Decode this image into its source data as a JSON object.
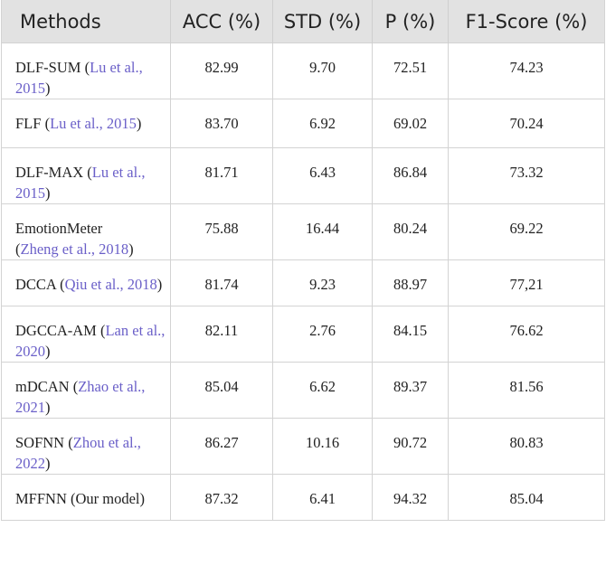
{
  "table": {
    "headers": [
      "Methods",
      "ACC (%)",
      "STD (%)",
      "P (%)",
      "F1-Score (%)"
    ],
    "rows": [
      {
        "method": "DLF-SUM",
        "ref": "Lu et al., 2015",
        "acc": "82.99",
        "std": "9.70",
        "p": "72.51",
        "f1": "74.23"
      },
      {
        "method": "FLF",
        "ref": "Lu et al., 2015",
        "acc": "83.70",
        "std": "6.92",
        "p": "69.02",
        "f1": "70.24"
      },
      {
        "method": "DLF-MAX",
        "ref": "Lu et al., 2015",
        "acc": "81.71",
        "std": "6.43",
        "p": "86.84",
        "f1": "73.32"
      },
      {
        "method": "EmotionMeter",
        "ref": "Zheng et al., 2018",
        "acc": "75.88",
        "std": "16.44",
        "p": "80.24",
        "f1": "69.22"
      },
      {
        "method": "DCCA",
        "ref": "Qiu et al., 2018",
        "acc": "81.74",
        "std": "9.23",
        "p": "88.97",
        "f1": "77,21"
      },
      {
        "method": "DGCCA-AM",
        "ref": "Lan et al., 2020",
        "acc": "82.11",
        "std": "2.76",
        "p": "84.15",
        "f1": "76.62"
      },
      {
        "method": "mDCAN",
        "ref": "Zhao et al., 2021",
        "acc": "85.04",
        "std": "6.62",
        "p": "89.37",
        "f1": "81.56"
      },
      {
        "method": "SOFNN",
        "ref": "Zhou et al., 2022",
        "acc": "86.27",
        "std": "10.16",
        "p": "90.72",
        "f1": "80.83"
      },
      {
        "method": "MFFNN",
        "ref": "",
        "suffix": "(Our model)",
        "acc": "87.32",
        "std": "6.41",
        "p": "94.32",
        "f1": "85.04"
      }
    ]
  },
  "colors": {
    "header_bg": "#e2e2e2",
    "link": "#6a5fc8",
    "border": "#d3d3d3"
  }
}
